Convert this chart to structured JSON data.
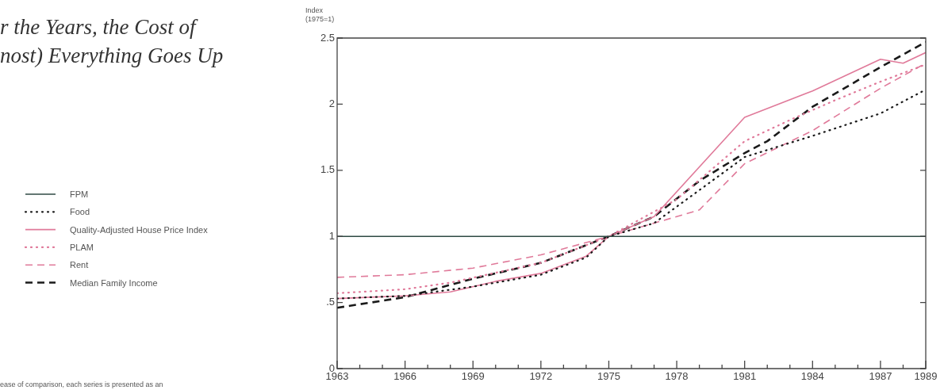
{
  "chart_data": {
    "type": "line",
    "title": "r the Years, the Cost of\nnost) Everything Goes Up",
    "ylabel": "Index\n(1975=1)",
    "annotations": [
      "ease of comparison, each series is presented as an"
    ],
    "legend": "left",
    "grid": false,
    "marker": "none",
    "xlim": [
      1963,
      1989
    ],
    "xticks": [
      1963,
      {
        "value": 1964,
        "label": null
      },
      {
        "value": 1965,
        "label": null
      },
      1966,
      {
        "value": 1967,
        "label": null
      },
      {
        "value": 1968,
        "label": null
      },
      1969,
      {
        "value": 1970,
        "label": null
      },
      {
        "value": 1971,
        "label": null
      },
      1972,
      {
        "value": 1973,
        "label": null
      },
      {
        "value": 1974,
        "label": null
      },
      1975,
      {
        "value": 1976,
        "label": null
      },
      {
        "value": 1977,
        "label": null
      },
      1978,
      {
        "value": 1979,
        "label": null
      },
      {
        "value": 1980,
        "label": null
      },
      1981,
      {
        "value": 1982,
        "label": null
      },
      {
        "value": 1983,
        "label": null
      },
      1984,
      {
        "value": 1985,
        "label": null
      },
      {
        "value": 1986,
        "label": null
      },
      1987,
      {
        "value": 1988,
        "label": null
      },
      1989
    ],
    "ylim": [
      0,
      2.5
    ],
    "yticks": [
      0,
      {
        "value": 0.5,
        "label": ".5"
      },
      1,
      1.5,
      2,
      2.5
    ],
    "series": [
      {
        "name": "FPM",
        "color": "#2f4a44",
        "line_style": "solid",
        "x": [
          1963,
          1989
        ],
        "values": [
          1,
          1
        ]
      },
      {
        "name": "Food",
        "color": "#1a1a1a",
        "line_style": "dotted",
        "x": [
          1963,
          1966,
          1969,
          1972,
          1974,
          1975,
          1977,
          1979,
          1981,
          1984,
          1987,
          1989
        ],
        "values": [
          0.53,
          0.55,
          0.62,
          0.71,
          0.84,
          1,
          1.1,
          1.35,
          1.6,
          1.76,
          1.93,
          2.11
        ]
      },
      {
        "name": "Quality-Adjusted House Price Index",
        "color": "#e07a9a",
        "line_style": "solid",
        "x": [
          1963,
          1966,
          1968,
          1970,
          1972,
          1974,
          1975,
          1977,
          1981,
          1984,
          1987,
          1988,
          1989
        ],
        "values": [
          0.53,
          0.55,
          0.58,
          0.66,
          0.72,
          0.85,
          1,
          1.15,
          1.9,
          2.1,
          2.34,
          2.31,
          2.39
        ]
      },
      {
        "name": "PLAM",
        "color": "#e07a9a",
        "line_style": "dotted",
        "x": [
          1963,
          1966,
          1968,
          1972,
          1975,
          1978,
          1981,
          1983,
          1985,
          1987,
          1989
        ],
        "values": [
          0.57,
          0.6,
          0.65,
          0.8,
          1,
          1.28,
          1.72,
          1.88,
          2.03,
          2.17,
          2.3
        ]
      },
      {
        "name": "Rent",
        "color": "#e07a9a",
        "line_style": "dashed",
        "x": [
          1963,
          1966,
          1969,
          1972,
          1975,
          1977,
          1979,
          1981,
          1984,
          1987,
          1989
        ],
        "values": [
          0.69,
          0.71,
          0.76,
          0.86,
          1,
          1.1,
          1.2,
          1.55,
          1.8,
          2.12,
          2.31
        ]
      },
      {
        "name": "Median Family Income",
        "color": "#1a1a1a",
        "line_style": "dashed",
        "x": [
          1963,
          1966,
          1969,
          1972,
          1975,
          1977,
          1979,
          1981,
          1982,
          1984,
          1987,
          1989
        ],
        "values": [
          0.46,
          0.54,
          0.68,
          0.8,
          1,
          1.15,
          1.42,
          1.63,
          1.72,
          1.98,
          2.28,
          2.47
        ]
      }
    ]
  }
}
